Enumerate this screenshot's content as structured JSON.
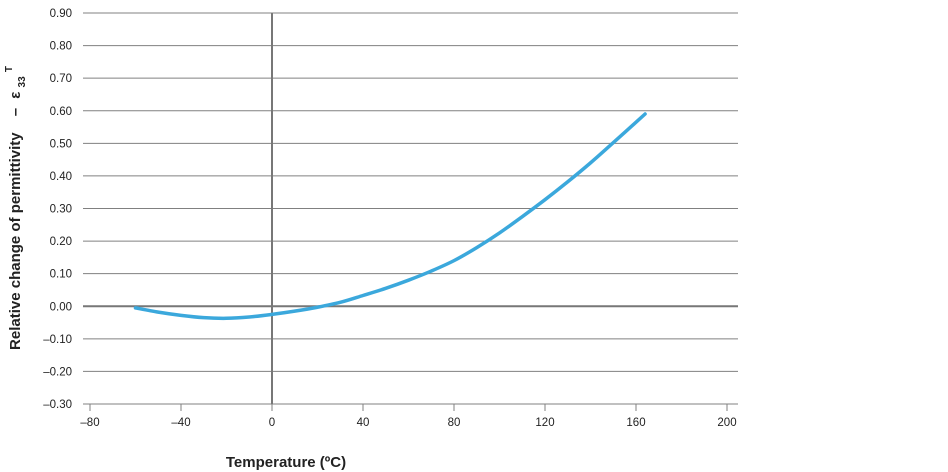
{
  "chart_data": {
    "type": "line",
    "title": "",
    "xlabel": "Temperature (ºC)",
    "ylabel": "Relative change of permittivity",
    "ylabel_symbol": {
      "dash": "–",
      "base": "ε",
      "sub": "33",
      "sup": "T"
    },
    "xlim": [
      -80,
      200
    ],
    "ylim": [
      -0.3,
      0.9
    ],
    "x_ticks": [
      -80,
      -40,
      0,
      40,
      80,
      120,
      160,
      200
    ],
    "x_tick_labels": [
      "–80",
      "–40",
      "0",
      "40",
      "80",
      "120",
      "160",
      "200"
    ],
    "y_ticks": [
      -0.3,
      -0.2,
      -0.1,
      0.0,
      0.1,
      0.2,
      0.3,
      0.4,
      0.5,
      0.6,
      0.7,
      0.8,
      0.9
    ],
    "y_tick_labels": [
      "–0.30",
      "–0.20",
      "–0.10",
      "0.00",
      "0.10",
      "0.20",
      "0.30",
      "0.40",
      "0.50",
      "0.60",
      "0.70",
      "0.80",
      "0.90"
    ],
    "grid": "horizontal",
    "colors": {
      "series": "#3ba8dc",
      "grid": "#808080",
      "axis": "#808080"
    },
    "series": [
      {
        "x": [
          -60,
          -50,
          -40,
          -30,
          -20,
          -10,
          0,
          10,
          20,
          30,
          40,
          50,
          60,
          70,
          80,
          90,
          100,
          110,
          120,
          130,
          140,
          150,
          164
        ],
        "y": [
          -0.005,
          -0.018,
          -0.028,
          -0.035,
          -0.037,
          -0.033,
          -0.025,
          -0.015,
          -0.003,
          0.012,
          0.033,
          0.055,
          0.08,
          0.108,
          0.14,
          0.18,
          0.225,
          0.275,
          0.327,
          0.382,
          0.44,
          0.502,
          0.59
        ]
      }
    ]
  }
}
